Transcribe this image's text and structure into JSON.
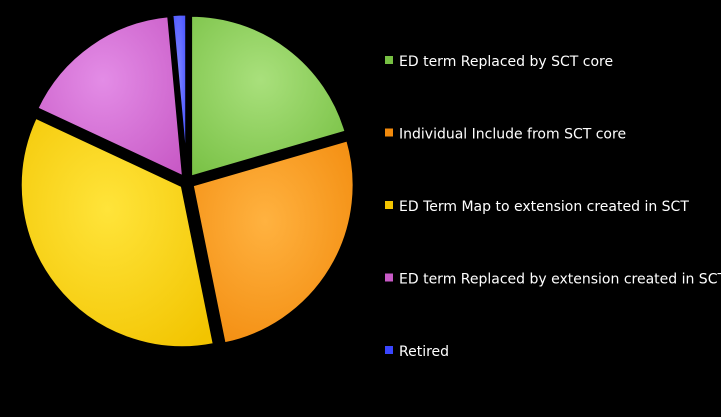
{
  "chart_data": {
    "type": "pie",
    "title": "",
    "legend_position": "right",
    "series": [
      {
        "labels": [
          "ED term Replaced by SCT core",
          "Individual Include from SCT core",
          "ED Term Map to extension created in SCT",
          "ED term Replaced by extension created in SCT",
          "Retired"
        ],
        "values": [
          21,
          27,
          36,
          17,
          1.5
        ],
        "colors": [
          "#77c043",
          "#f28a0c",
          "#f2c400",
          "#c85ac6",
          "#3a46ff"
        ],
        "highlight_colors": [
          "#a9e07c",
          "#ffb240",
          "#ffe43a",
          "#e38ce6",
          "#7f86ff"
        ],
        "exploded": true
      }
    ]
  }
}
